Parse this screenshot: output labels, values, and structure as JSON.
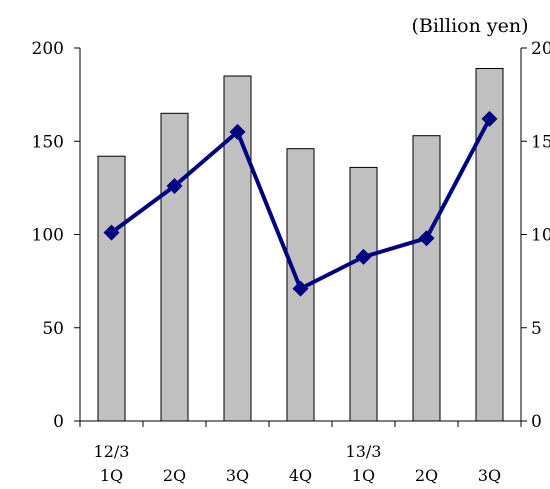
{
  "chart_data": {
    "type": "bar",
    "unit_label": "(Billion yen)",
    "categories": [
      "1Q",
      "2Q",
      "3Q",
      "4Q",
      "1Q",
      "2Q",
      "3Q"
    ],
    "group_labels": [
      {
        "label": "12/3",
        "at": 0
      },
      {
        "label": "13/3",
        "at": 4
      }
    ],
    "series": [
      {
        "type": "bar",
        "axis": "left",
        "color": "#c0c0c0",
        "values": [
          142,
          165,
          185,
          146,
          136,
          153,
          189
        ]
      },
      {
        "type": "line",
        "axis": "right",
        "color": "#000080",
        "values": [
          10.1,
          12.6,
          15.5,
          7.1,
          8.8,
          9.8,
          16.2
        ]
      }
    ],
    "y_left": {
      "min": 0,
      "max": 200,
      "ticks": [
        "0",
        "50",
        "100",
        "150",
        "200"
      ]
    },
    "y_right": {
      "min": 0,
      "max": 20,
      "ticks": [
        "0",
        "5",
        "10",
        "15",
        "20"
      ]
    },
    "grid": false,
    "legend": "none"
  }
}
